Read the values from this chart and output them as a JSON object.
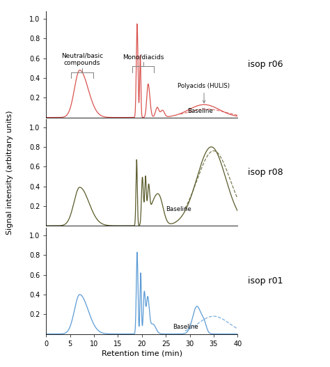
{
  "xlabel": "Retention time (min)",
  "ylabel": "Signal intensity (arbitrary units)",
  "xlim": [
    0,
    40
  ],
  "ylim": [
    0,
    1.08
  ],
  "yticks": [
    0.2,
    0.4,
    0.6,
    0.8,
    1.0
  ],
  "xticks": [
    0,
    5,
    10,
    15,
    20,
    25,
    30,
    35,
    40
  ],
  "color_r06": "#d9534f",
  "color_r08": "#5a5a2a",
  "color_r01": "#5b9bd5",
  "label_r06": "isop r06",
  "label_r08": "isop r08",
  "label_r01": "isop r01",
  "neutral_basic_label": "Neutral/basic\ncompounds",
  "mono_diacids_label": "Mono/diacids",
  "polyacids_label": "Polyacids (HULIS)",
  "baseline_label": "Baseline"
}
